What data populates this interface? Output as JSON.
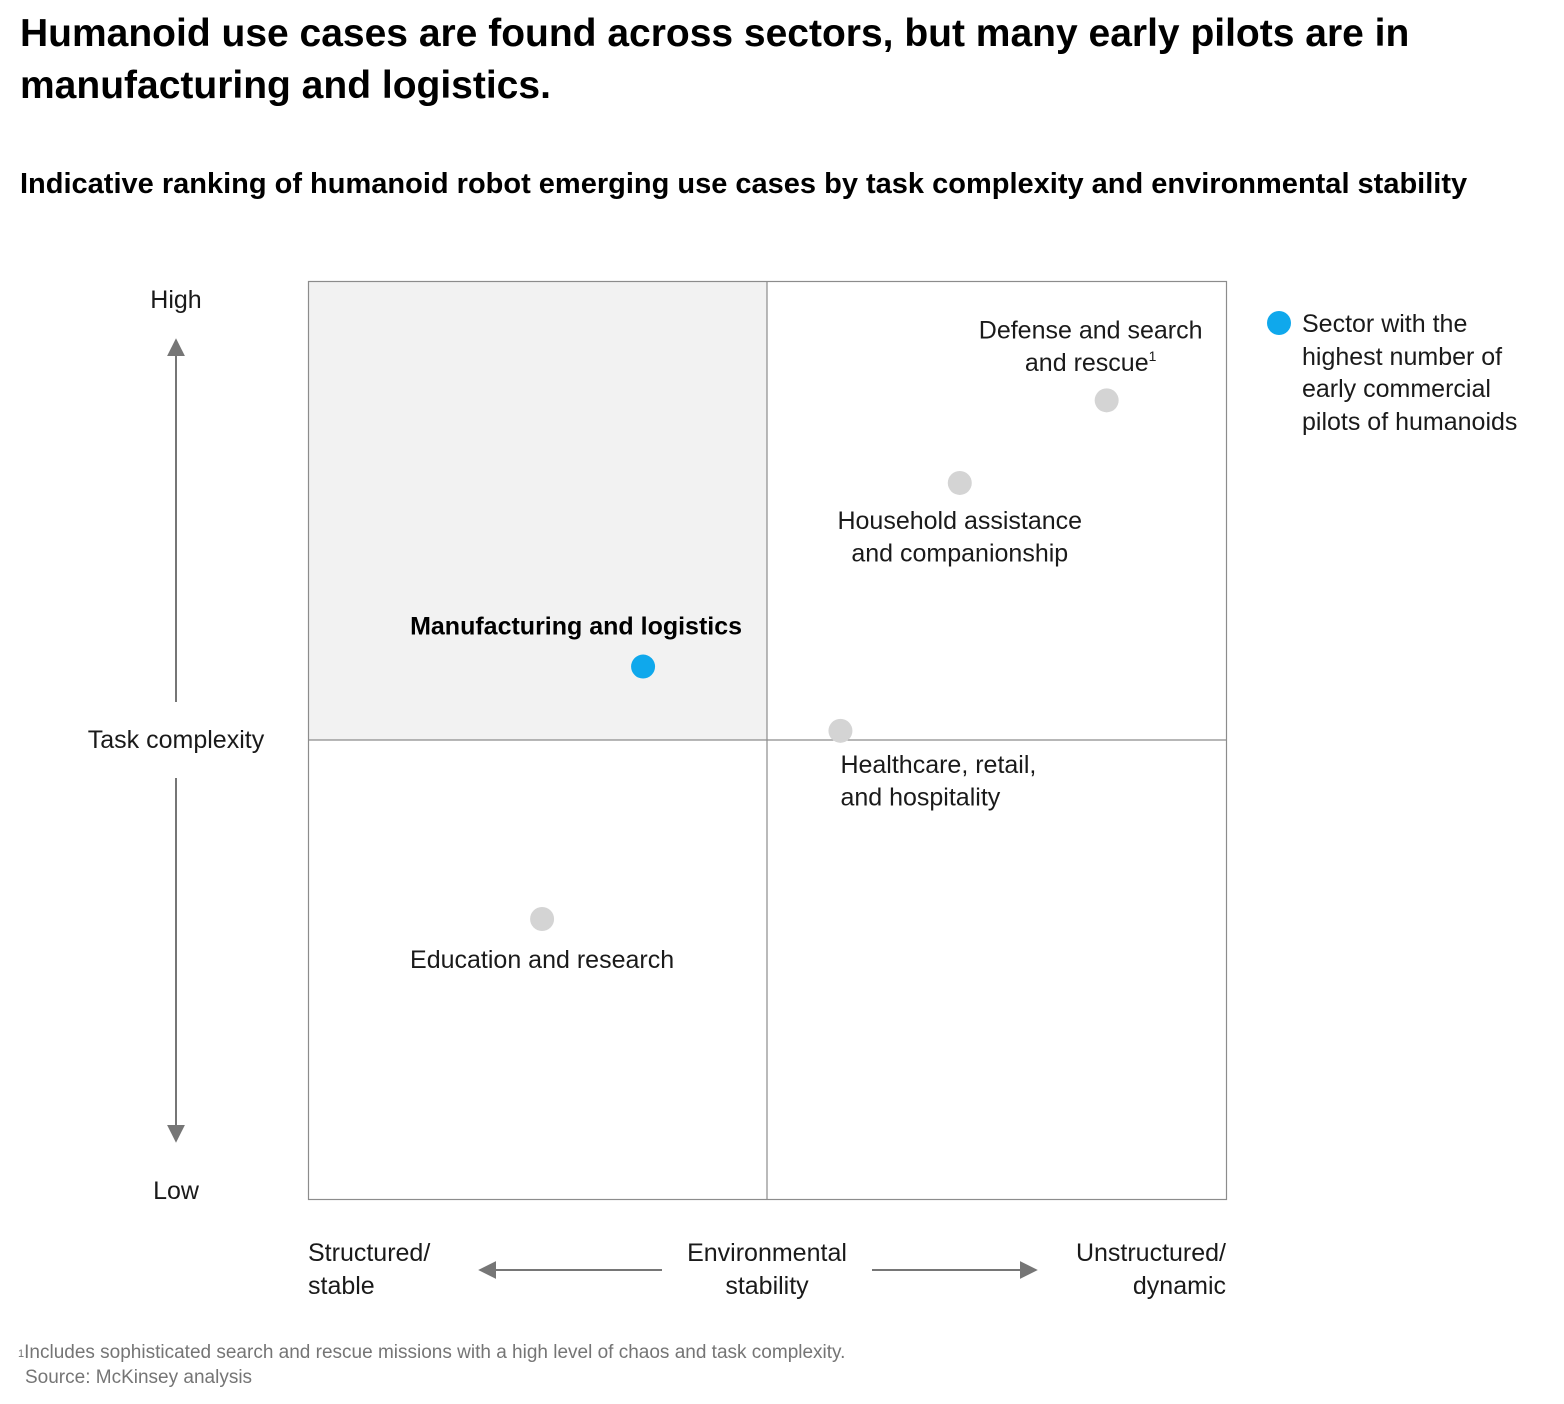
{
  "title": "Humanoid use cases are found across sectors, but many early pilots are in manufacturing and logistics.",
  "subtitle": "Indicative ranking of humanoid robot emerging use cases by task complexity and environmental stability",
  "chart_data": {
    "type": "scatter",
    "x_axis": {
      "label_lines": [
        "Environmental",
        "stability"
      ],
      "low_label_lines": [
        "Structured/",
        "stable"
      ],
      "high_label_lines": [
        "Unstructured/",
        "dynamic"
      ],
      "range": [
        0,
        100
      ]
    },
    "y_axis": {
      "label": "Task complexity",
      "low_label": "Low",
      "high_label": "High",
      "range": [
        0,
        100
      ]
    },
    "highlighted_quadrant": "top-left",
    "points": [
      {
        "label_lines": [
          "Defense and search",
          "and rescue"
        ],
        "superscript": "1",
        "x": 87,
        "y": 87,
        "highlight": false
      },
      {
        "label_lines": [
          "Household assistance",
          "and companionship"
        ],
        "x": 71,
        "y": 78,
        "highlight": false
      },
      {
        "label_lines": [
          "Manufacturing and logistics"
        ],
        "x": 36.5,
        "y": 58,
        "highlight": true
      },
      {
        "label_lines": [
          "Healthcare, retail,",
          "and hospitality"
        ],
        "x": 58,
        "y": 51,
        "highlight": false
      },
      {
        "label_lines": [
          "Education and research"
        ],
        "x": 25.5,
        "y": 30.5,
        "highlight": false
      }
    ],
    "legend": {
      "text": "Sector with the highest number of early commercial pilots of humanoids",
      "position": "top-right"
    }
  },
  "colors": {
    "highlight": "#0fa8ec",
    "point": "#d4d4d4",
    "quadrant_fill": "#f2f2f2",
    "grid": "#8c8c8c",
    "arrow": "#767676"
  },
  "footnote": {
    "marker": "1",
    "text": "Includes sophisticated search and rescue missions with a high level of chaos and task complexity."
  },
  "source": "Source: McKinsey analysis"
}
